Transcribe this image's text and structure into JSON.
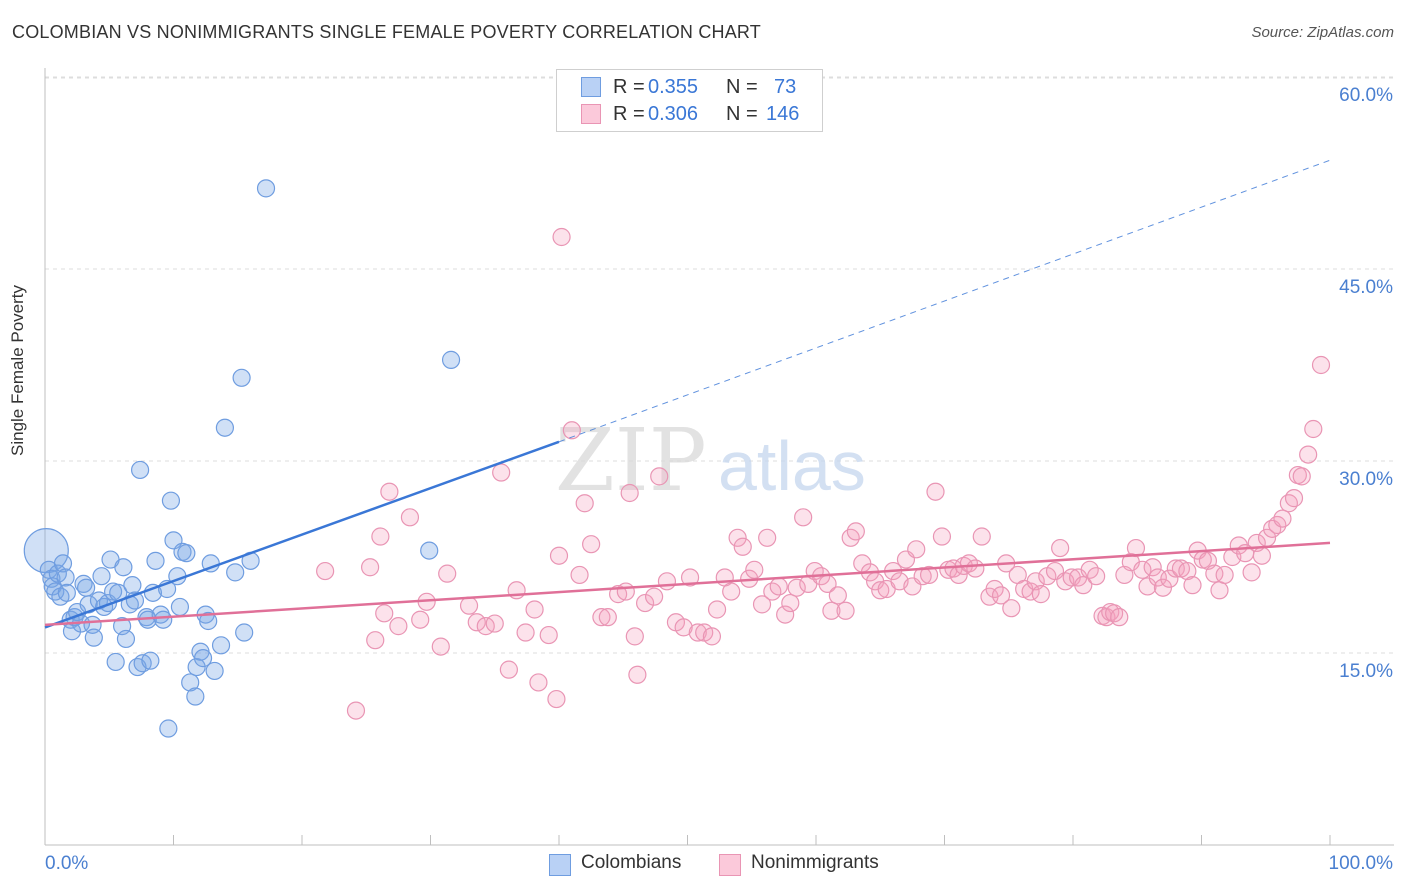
{
  "header": {
    "title": "COLOMBIAN VS NONIMMIGRANTS SINGLE FEMALE POVERTY CORRELATION CHART",
    "source": "Source: ZipAtlas.com"
  },
  "watermark": {
    "zip": "ZIP",
    "atlas": "atlas"
  },
  "legend": {
    "rows": [
      {
        "r_label": "R =",
        "r_value": "0.355",
        "n_label": "N =",
        "n_value": "73"
      },
      {
        "r_label": "R =",
        "r_value": "0.306",
        "n_label": "N =",
        "n_value": "146"
      }
    ]
  },
  "bottom_legend": {
    "colombians": "Colombians",
    "nonimmigrants": "Nonimmigrants"
  },
  "colors": {
    "blue": "#3a77d6",
    "blue_fill": "rgba(120,165,230,0.35)",
    "blue_stroke": "#6f9de0",
    "pink": "#e07098",
    "pink_fill": "rgba(245,160,190,0.30)",
    "pink_stroke": "#e995b4",
    "tick_label": "#4a7fd0",
    "grid": "#dddddd"
  },
  "chart_data": {
    "type": "scatter",
    "title": "COLOMBIAN VS NONIMMIGRANTS SINGLE FEMALE POVERTY CORRELATION CHART",
    "xlabel": "",
    "ylabel": "Single Female Poverty",
    "xlim": [
      0,
      100
    ],
    "ylim": [
      0,
      65
    ],
    "x_ticks": [
      "0.0%",
      "100.0%"
    ],
    "y_ticks": [
      {
        "value": 15,
        "label": "15.0%"
      },
      {
        "value": 30,
        "label": "30.0%"
      },
      {
        "value": 45,
        "label": "45.0%"
      },
      {
        "value": 60,
        "label": "60.0%"
      }
    ],
    "grid": true,
    "legend_position": "top-center",
    "series": [
      {
        "name": "Colombians",
        "color": "#3a77d6",
        "R": 0.355,
        "N": 73,
        "trend": {
          "x": [
            0,
            40
          ],
          "y": [
            17.0,
            31.5
          ],
          "dashed_extension_to": [
            100,
            53.5
          ]
        },
        "points": [
          [
            0.1,
            23.0
          ],
          [
            0.3,
            21.5
          ],
          [
            0.5,
            20.8
          ],
          [
            0.6,
            20.2
          ],
          [
            0.8,
            19.8
          ],
          [
            1.0,
            21.2
          ],
          [
            1.2,
            19.4
          ],
          [
            1.4,
            22.0
          ],
          [
            1.6,
            20.9
          ],
          [
            1.7,
            19.7
          ],
          [
            2.0,
            17.6
          ],
          [
            2.1,
            16.7
          ],
          [
            2.3,
            17.8
          ],
          [
            2.5,
            18.2
          ],
          [
            2.8,
            17.3
          ],
          [
            3.0,
            20.4
          ],
          [
            3.2,
            20.1
          ],
          [
            3.4,
            18.8
          ],
          [
            3.7,
            17.2
          ],
          [
            3.8,
            16.2
          ],
          [
            4.2,
            19.1
          ],
          [
            4.4,
            21.0
          ],
          [
            4.6,
            18.6
          ],
          [
            4.9,
            18.9
          ],
          [
            5.1,
            22.3
          ],
          [
            5.3,
            19.8
          ],
          [
            5.5,
            14.3
          ],
          [
            5.7,
            19.7
          ],
          [
            6.0,
            17.1
          ],
          [
            6.1,
            21.7
          ],
          [
            6.3,
            16.1
          ],
          [
            6.6,
            18.8
          ],
          [
            6.8,
            20.3
          ],
          [
            7.0,
            19.1
          ],
          [
            7.2,
            13.9
          ],
          [
            7.4,
            29.3
          ],
          [
            7.6,
            14.2
          ],
          [
            7.9,
            17.8
          ],
          [
            8.0,
            17.6
          ],
          [
            8.2,
            14.4
          ],
          [
            8.4,
            19.7
          ],
          [
            8.6,
            22.2
          ],
          [
            9.0,
            18.0
          ],
          [
            9.2,
            17.6
          ],
          [
            9.5,
            20.0
          ],
          [
            9.6,
            9.1
          ],
          [
            9.8,
            26.9
          ],
          [
            10.0,
            23.8
          ],
          [
            10.3,
            21.0
          ],
          [
            10.5,
            18.6
          ],
          [
            10.7,
            22.9
          ],
          [
            11.0,
            22.8
          ],
          [
            11.3,
            12.7
          ],
          [
            11.7,
            11.6
          ],
          [
            11.8,
            13.9
          ],
          [
            12.1,
            15.1
          ],
          [
            12.3,
            14.6
          ],
          [
            12.5,
            18.0
          ],
          [
            12.7,
            17.5
          ],
          [
            12.9,
            22.0
          ],
          [
            13.2,
            13.6
          ],
          [
            13.7,
            15.6
          ],
          [
            14.0,
            32.6
          ],
          [
            14.8,
            21.3
          ],
          [
            15.3,
            36.5
          ],
          [
            15.5,
            16.6
          ],
          [
            16.0,
            22.2
          ],
          [
            17.2,
            51.3
          ],
          [
            29.9,
            23.0
          ],
          [
            31.6,
            37.9
          ]
        ]
      },
      {
        "name": "Nonimmigrants",
        "color": "#e07098",
        "R": 0.306,
        "N": 146,
        "trend": {
          "x": [
            0,
            100
          ],
          "y": [
            17.2,
            23.6
          ]
        },
        "points": [
          [
            21.8,
            21.4
          ],
          [
            24.2,
            10.5
          ],
          [
            25.3,
            21.7
          ],
          [
            25.7,
            16.0
          ],
          [
            26.1,
            24.1
          ],
          [
            26.4,
            18.1
          ],
          [
            26.8,
            27.6
          ],
          [
            27.5,
            17.1
          ],
          [
            28.4,
            25.6
          ],
          [
            29.2,
            17.6
          ],
          [
            29.7,
            19.0
          ],
          [
            30.8,
            15.5
          ],
          [
            31.3,
            21.2
          ],
          [
            33.0,
            18.7
          ],
          [
            33.6,
            17.4
          ],
          [
            34.3,
            17.1
          ],
          [
            35.0,
            17.3
          ],
          [
            35.5,
            29.1
          ],
          [
            36.1,
            13.7
          ],
          [
            36.7,
            19.9
          ],
          [
            37.4,
            16.6
          ],
          [
            38.1,
            18.4
          ],
          [
            38.4,
            12.7
          ],
          [
            39.2,
            16.4
          ],
          [
            39.8,
            11.4
          ],
          [
            40.0,
            22.6
          ],
          [
            40.2,
            47.5
          ],
          [
            41.0,
            32.4
          ],
          [
            41.6,
            21.1
          ],
          [
            42.0,
            26.7
          ],
          [
            42.5,
            23.5
          ],
          [
            43.3,
            17.8
          ],
          [
            43.8,
            17.8
          ],
          [
            44.6,
            19.6
          ],
          [
            45.2,
            19.8
          ],
          [
            45.5,
            27.5
          ],
          [
            45.9,
            16.3
          ],
          [
            46.1,
            13.3
          ],
          [
            46.7,
            18.9
          ],
          [
            47.4,
            19.4
          ],
          [
            47.8,
            28.8
          ],
          [
            48.4,
            20.6
          ],
          [
            49.1,
            17.4
          ],
          [
            49.7,
            17.0
          ],
          [
            50.2,
            20.9
          ],
          [
            50.8,
            16.6
          ],
          [
            51.3,
            16.6
          ],
          [
            51.9,
            16.3
          ],
          [
            52.3,
            18.4
          ],
          [
            52.9,
            20.9
          ],
          [
            53.4,
            19.8
          ],
          [
            53.9,
            24.0
          ],
          [
            54.3,
            23.3
          ],
          [
            54.8,
            20.8
          ],
          [
            55.2,
            21.5
          ],
          [
            55.8,
            18.8
          ],
          [
            56.2,
            24.0
          ],
          [
            56.6,
            19.8
          ],
          [
            57.1,
            20.2
          ],
          [
            57.6,
            18.0
          ],
          [
            58.0,
            18.9
          ],
          [
            58.5,
            20.1
          ],
          [
            59.0,
            25.6
          ],
          [
            59.4,
            20.4
          ],
          [
            59.9,
            21.4
          ],
          [
            60.4,
            21.0
          ],
          [
            60.9,
            20.4
          ],
          [
            61.2,
            18.3
          ],
          [
            61.7,
            19.5
          ],
          [
            62.3,
            18.3
          ],
          [
            62.7,
            24.0
          ],
          [
            63.1,
            24.5
          ],
          [
            63.6,
            22.0
          ],
          [
            64.2,
            21.3
          ],
          [
            64.6,
            20.6
          ],
          [
            65.0,
            19.9
          ],
          [
            65.5,
            20.0
          ],
          [
            66.0,
            21.4
          ],
          [
            66.5,
            20.6
          ],
          [
            67.0,
            22.3
          ],
          [
            67.5,
            20.2
          ],
          [
            67.8,
            23.1
          ],
          [
            68.3,
            21.0
          ],
          [
            68.8,
            21.1
          ],
          [
            69.3,
            27.6
          ],
          [
            69.8,
            24.1
          ],
          [
            70.3,
            21.5
          ],
          [
            70.7,
            21.6
          ],
          [
            71.1,
            21.1
          ],
          [
            71.5,
            21.8
          ],
          [
            71.9,
            22.0
          ],
          [
            72.4,
            21.6
          ],
          [
            72.9,
            24.1
          ],
          [
            73.5,
            19.4
          ],
          [
            73.9,
            20.0
          ],
          [
            74.4,
            19.5
          ],
          [
            74.8,
            22.0
          ],
          [
            75.2,
            18.5
          ],
          [
            75.7,
            21.1
          ],
          [
            76.2,
            20.0
          ],
          [
            76.7,
            19.8
          ],
          [
            77.1,
            20.6
          ],
          [
            77.5,
            19.6
          ],
          [
            78.0,
            21.0
          ],
          [
            78.6,
            21.4
          ],
          [
            79.0,
            23.2
          ],
          [
            79.4,
            20.6
          ],
          [
            79.9,
            20.9
          ],
          [
            80.4,
            20.9
          ],
          [
            80.8,
            20.3
          ],
          [
            81.3,
            21.5
          ],
          [
            81.8,
            21.0
          ],
          [
            82.3,
            17.9
          ],
          [
            82.6,
            17.8
          ],
          [
            82.9,
            18.2
          ],
          [
            83.2,
            18.1
          ],
          [
            83.6,
            17.8
          ],
          [
            84.0,
            21.1
          ],
          [
            84.5,
            22.1
          ],
          [
            84.9,
            23.2
          ],
          [
            85.4,
            21.5
          ],
          [
            85.8,
            20.2
          ],
          [
            86.2,
            21.7
          ],
          [
            86.6,
            20.9
          ],
          [
            87.0,
            20.1
          ],
          [
            87.5,
            20.8
          ],
          [
            88.0,
            21.6
          ],
          [
            88.4,
            21.6
          ],
          [
            88.9,
            21.4
          ],
          [
            89.3,
            20.3
          ],
          [
            89.7,
            23.0
          ],
          [
            90.1,
            22.3
          ],
          [
            90.5,
            22.2
          ],
          [
            91.0,
            21.2
          ],
          [
            91.4,
            19.9
          ],
          [
            91.8,
            21.1
          ],
          [
            92.4,
            22.5
          ],
          [
            92.9,
            23.4
          ],
          [
            93.4,
            22.8
          ],
          [
            93.9,
            21.3
          ],
          [
            94.3,
            23.6
          ],
          [
            94.7,
            22.6
          ],
          [
            95.1,
            24.0
          ],
          [
            95.5,
            24.7
          ],
          [
            95.9,
            25.0
          ],
          [
            96.3,
            25.5
          ],
          [
            96.8,
            26.7
          ],
          [
            97.2,
            27.1
          ],
          [
            97.5,
            28.9
          ],
          [
            97.8,
            28.8
          ],
          [
            98.3,
            30.5
          ],
          [
            98.7,
            32.5
          ],
          [
            99.3,
            37.5
          ]
        ]
      }
    ]
  }
}
